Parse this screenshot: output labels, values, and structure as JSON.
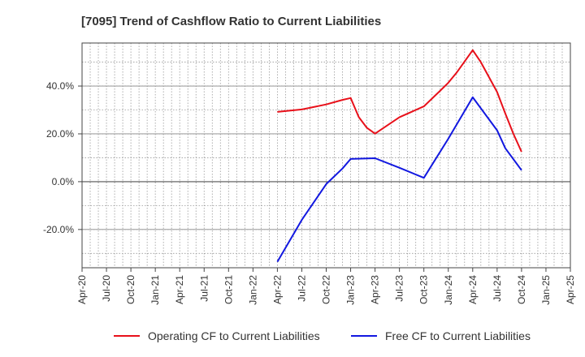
{
  "chart_data": {
    "type": "line",
    "title": "[7095]  Trend of Cashflow Ratio to Current Liabilities",
    "xlabel": "",
    "ylabel": "",
    "x_range": [
      "2020-04",
      "2025-04"
    ],
    "ylim": [
      -36,
      58
    ],
    "grid": true,
    "legend_position": "bottom",
    "x_tick_labels": [
      "Apr-20",
      "Jul-20",
      "Oct-20",
      "Jan-21",
      "Apr-21",
      "Jul-21",
      "Oct-21",
      "Jan-22",
      "Apr-22",
      "Jul-22",
      "Oct-22",
      "Jan-23",
      "Apr-23",
      "Jul-23",
      "Oct-23",
      "Jan-24",
      "Apr-24",
      "Jul-24",
      "Oct-24",
      "Jan-25",
      "Apr-25"
    ],
    "x_tick_dates": [
      "2020-04",
      "2020-07",
      "2020-10",
      "2021-01",
      "2021-04",
      "2021-07",
      "2021-10",
      "2022-01",
      "2022-04",
      "2022-07",
      "2022-10",
      "2023-01",
      "2023-04",
      "2023-07",
      "2023-10",
      "2024-01",
      "2024-04",
      "2024-07",
      "2024-10",
      "2025-01",
      "2025-04"
    ],
    "y_ticks": [
      -20,
      0,
      20,
      40
    ],
    "y_tick_labels": [
      "-20.0%",
      "0.0%",
      "20.0%",
      "40.0%"
    ],
    "series": [
      {
        "name": "Operating CF to Current Liabilities",
        "color": "#e8101a",
        "x": [
          "2022-04",
          "2022-07",
          "2022-10",
          "2022-12",
          "2023-01",
          "2023-02",
          "2023-03",
          "2023-04",
          "2023-07",
          "2023-10",
          "2023-12",
          "2024-01",
          "2024-02",
          "2024-04",
          "2024-05",
          "2024-07",
          "2024-08",
          "2024-09",
          "2024-10"
        ],
        "values": [
          29.2,
          30.2,
          32.3,
          34.2,
          35.0,
          27.0,
          22.5,
          20.1,
          27.0,
          31.5,
          38.0,
          41.4,
          45.5,
          55.0,
          50.0,
          37.5,
          28.5,
          20.0,
          12.5
        ]
      },
      {
        "name": "Free CF to Current Liabilities",
        "color": "#1218e0",
        "x": [
          "2022-04",
          "2022-07",
          "2022-10",
          "2022-12",
          "2023-01",
          "2023-04",
          "2023-07",
          "2023-10",
          "2024-01",
          "2024-04",
          "2024-07",
          "2024-08",
          "2024-10"
        ],
        "values": [
          -33.5,
          -16.0,
          -1.0,
          5.5,
          9.5,
          9.8,
          5.8,
          1.6,
          18.0,
          35.3,
          21.5,
          14.0,
          4.8
        ]
      }
    ]
  }
}
